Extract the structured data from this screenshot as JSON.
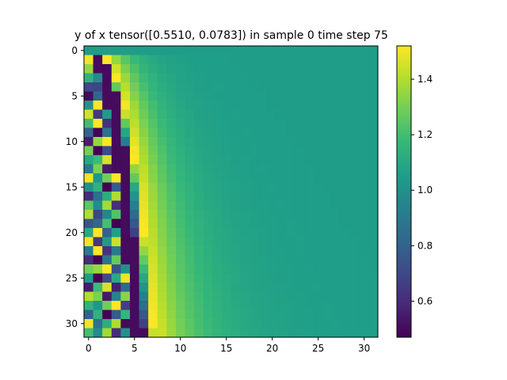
{
  "chart_data": {
    "type": "heatmap",
    "title": "y of x tensor([0.5510, 0.0783]) in sample 0 time step 75",
    "xlabel": "",
    "ylabel": "",
    "grid": false,
    "rows": 32,
    "cols": 32,
    "xlim": [
      -0.5,
      31.5
    ],
    "ylim": [
      31.5,
      -0.5
    ],
    "x_ticks": [
      0,
      5,
      10,
      15,
      20,
      25,
      30
    ],
    "y_ticks": [
      0,
      5,
      10,
      15,
      20,
      25,
      30
    ],
    "value_range": [
      0.47,
      1.52
    ],
    "colormap": "viridis",
    "colorbar": {
      "ticks": [
        0.6,
        0.8,
        1.0,
        1.2,
        1.4
      ],
      "tick_labels": [
        "0.6",
        "0.8",
        "1.0",
        "1.2",
        "1.4"
      ]
    },
    "background_value": 1.05,
    "first_column_values": [
      1.05,
      1.5,
      1.35,
      1.15,
      0.7,
      0.5,
      1.0,
      1.45,
      1.2,
      0.8,
      0.55,
      1.3,
      1.1,
      0.9,
      1.5,
      1.0,
      0.6,
      1.25,
      1.4,
      0.75,
      1.1,
      1.5,
      0.9,
      0.6,
      1.3,
      1.05,
      0.55,
      1.4,
      1.15,
      0.8,
      1.5,
      1.2
    ],
    "front_peak_column_by_row": [
      0,
      2.0,
      2.6,
      3.0,
      3.3,
      3.6,
      3.9,
      4.1,
      4.3,
      4.5,
      4.7,
      4.9,
      5.0,
      5.2,
      5.3,
      5.5,
      5.6,
      5.7,
      5.8,
      5.9,
      6.0,
      6.1,
      6.2,
      6.3,
      6.4,
      6.5,
      6.6,
      6.7,
      6.8,
      6.9,
      7.0,
      7.1
    ],
    "trough_column_by_row": [
      0,
      1.0,
      1.5,
      1.8,
      2.1,
      2.4,
      2.6,
      2.8,
      3.0,
      3.2,
      3.3,
      3.4,
      3.5,
      3.6,
      3.7,
      3.8,
      3.9,
      4.0,
      4.1,
      4.2,
      4.3,
      4.4,
      4.5,
      4.6,
      4.7,
      4.8,
      4.9,
      5.0,
      5.1,
      5.2,
      5.3,
      5.4
    ]
  }
}
